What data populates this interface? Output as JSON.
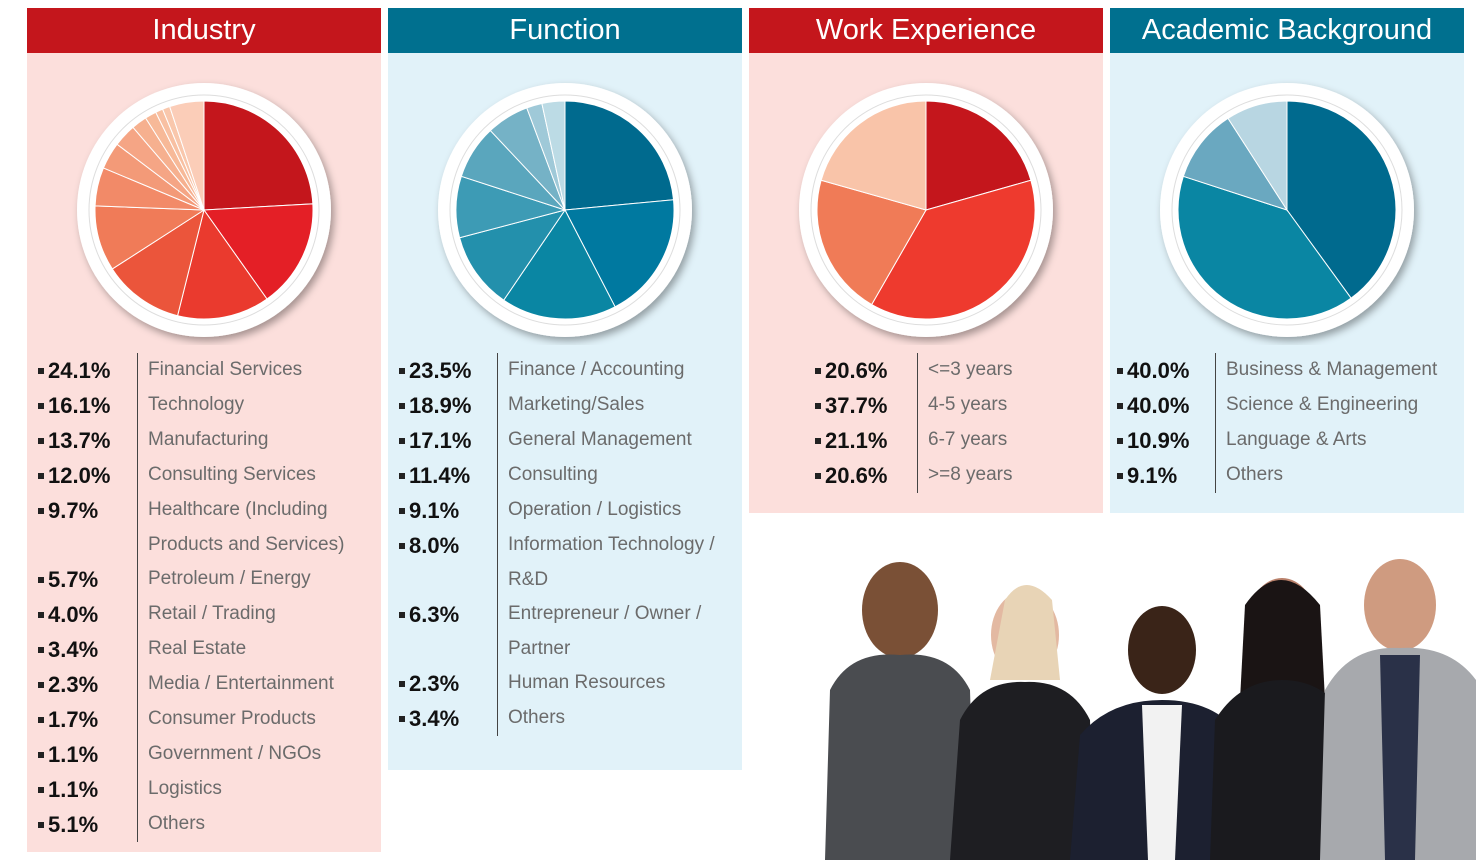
{
  "chart_data": [
    {
      "type": "pie",
      "title": "Industry",
      "categories": [
        "Financial Services",
        "Technology",
        "Manufacturing",
        "Consulting Services",
        "Healthcare (Including Products and Services)",
        "Petroleum / Energy",
        "Retail / Trading",
        "Real Estate",
        "Media / Entertainment",
        "Consumer Products",
        "Government / NGOs",
        "Logistics",
        "Others"
      ],
      "values": [
        24.1,
        16.1,
        13.7,
        12.0,
        9.7,
        5.7,
        4.0,
        3.4,
        2.3,
        1.7,
        1.1,
        1.1,
        5.1
      ],
      "value_labels": [
        "24.1%",
        "16.1%",
        "13.7%",
        "12.0%",
        "9.7%",
        "5.7%",
        "4.0%",
        "3.4%",
        "2.3%",
        "1.7%",
        "1.1%",
        "1.1%",
        "5.1%"
      ],
      "colors": [
        "#c4161c",
        "#e41f26",
        "#ea3a2e",
        "#eb553b",
        "#f07b58",
        "#f28a68",
        "#f39a78",
        "#f5a585",
        "#f6b08f",
        "#f7b998",
        "#f8c0a2",
        "#f9c7ac",
        "#fbcdb8"
      ]
    },
    {
      "type": "pie",
      "title": "Function",
      "categories": [
        "Finance / Accounting",
        "Marketing/Sales",
        "General Management",
        "Consulting",
        "Operation / Logistics",
        "Information Technology / R&D",
        "Entrepreneur / Owner / Partner",
        "Human Resources",
        "Others"
      ],
      "values": [
        23.5,
        18.9,
        17.1,
        11.4,
        9.1,
        8.0,
        6.3,
        2.3,
        3.4
      ],
      "value_labels": [
        "23.5%",
        "18.9%",
        "17.1%",
        "11.4%",
        "9.1%",
        "8.0%",
        "6.3%",
        "2.3%",
        "3.4%"
      ],
      "colors": [
        "#006a8e",
        "#0079a0",
        "#0a86a3",
        "#2390ac",
        "#3d9bb5",
        "#5aa6bd",
        "#75b2c6",
        "#9fc9d8",
        "#bcdbe5"
      ]
    },
    {
      "type": "pie",
      "title": "Work Experience",
      "categories": [
        "<=3 years",
        "4-5 years",
        "6-7 years",
        ">=8 years"
      ],
      "values": [
        20.6,
        37.7,
        21.1,
        20.6
      ],
      "value_labels": [
        "20.6%",
        "37.7%",
        "21.1%",
        "20.6%"
      ],
      "colors": [
        "#c4161c",
        "#ee3a2e",
        "#f07b57",
        "#f9c4a9"
      ]
    },
    {
      "type": "pie",
      "title": "Academic Background",
      "categories": [
        "Business & Management",
        "Science & Engineering",
        "Language & Arts",
        "Others"
      ],
      "values": [
        40.0,
        40.0,
        10.9,
        9.1
      ],
      "value_labels": [
        "40.0%",
        "40.0%",
        "10.9%",
        "9.1%"
      ],
      "colors": [
        "#006a8e",
        "#0a86a3",
        "#6aa8c0",
        "#b8d6e2"
      ]
    }
  ]
}
